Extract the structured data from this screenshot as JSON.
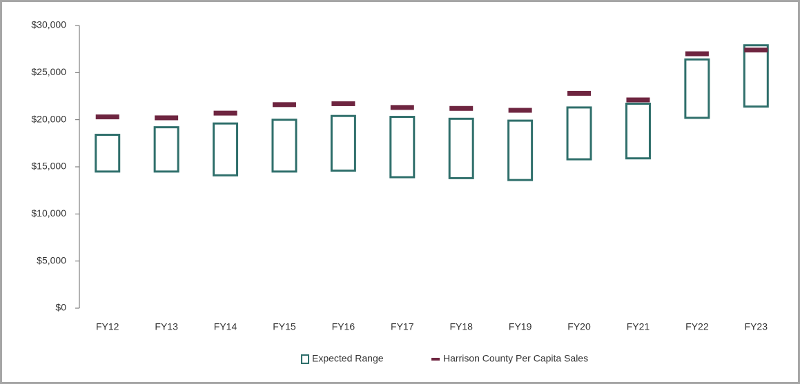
{
  "chart_data": {
    "type": "range-bar",
    "categories": [
      "FY12",
      "FY13",
      "FY14",
      "FY15",
      "FY16",
      "FY17",
      "FY18",
      "FY19",
      "FY20",
      "FY21",
      "FY22",
      "FY23"
    ],
    "series": [
      {
        "name": "Expected Range",
        "color": "#2f6f6b",
        "low": [
          14500,
          14500,
          14100,
          14500,
          14600,
          13900,
          13800,
          13600,
          15800,
          15900,
          20200,
          21400
        ],
        "high": [
          18400,
          19200,
          19600,
          20000,
          20400,
          20300,
          20100,
          19900,
          21300,
          21700,
          26400,
          27900
        ]
      },
      {
        "name": "Harrison County Per Capita Sales",
        "color": "#6e2540",
        "values": [
          20300,
          20200,
          20700,
          21600,
          21700,
          21300,
          21200,
          21000,
          22800,
          22100,
          27000,
          27400
        ]
      }
    ],
    "ylim": [
      0,
      30000
    ],
    "yticks": [
      {
        "value": 0,
        "label": "$0"
      },
      {
        "value": 5000,
        "label": "$5,000"
      },
      {
        "value": 10000,
        "label": "$10,000"
      },
      {
        "value": 15000,
        "label": "$15,000"
      },
      {
        "value": 20000,
        "label": "$20,000"
      },
      {
        "value": 25000,
        "label": "$25,000"
      },
      {
        "value": 30000,
        "label": "$30,000"
      }
    ],
    "legend": "bottom"
  }
}
